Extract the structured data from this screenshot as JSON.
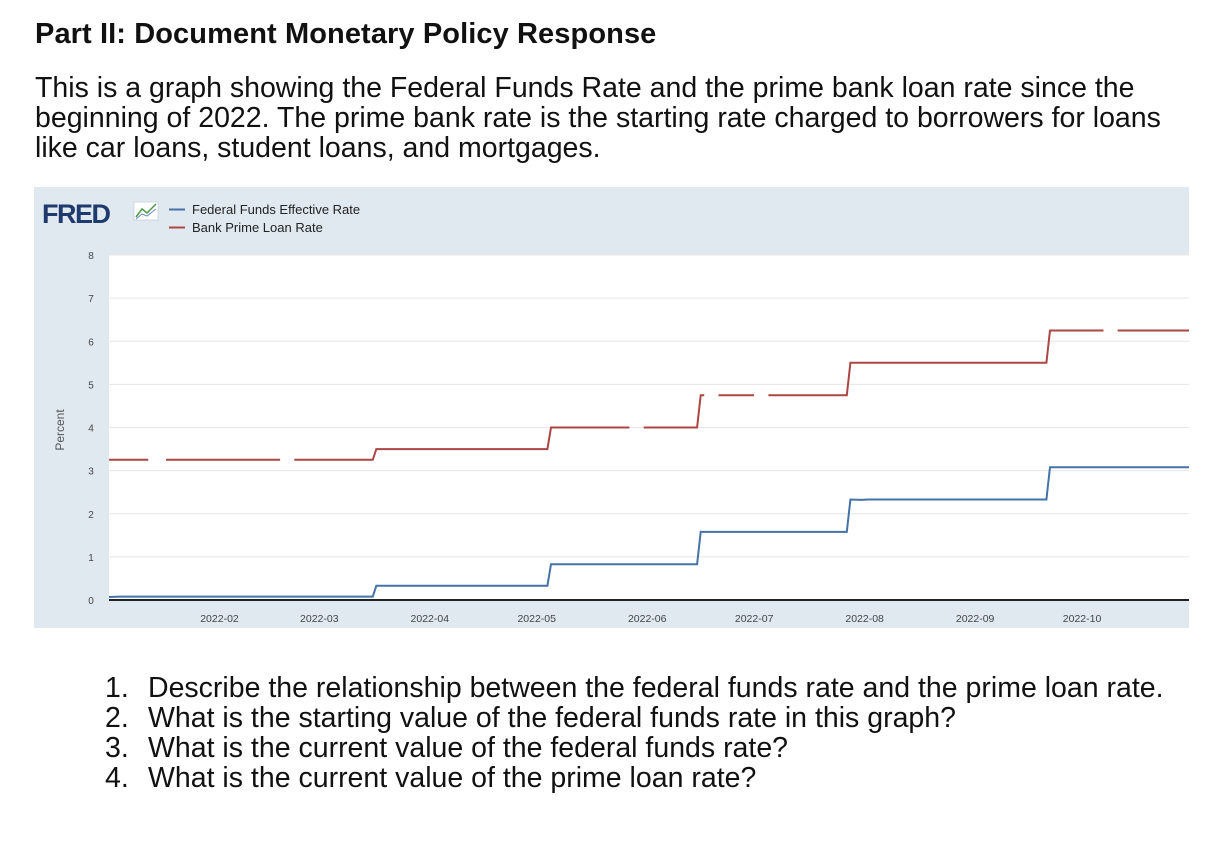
{
  "heading": "Part II:  Document Monetary Policy Response",
  "intro": "This is a graph showing the Federal Funds Rate and the prime bank loan rate since the beginning of 2022.  The prime bank rate is the starting rate charged to borrowers for loans like car loans, student loans, and mortgages.",
  "fred_logo_text": "FRED",
  "colors": {
    "federal_funds": "#4572a7",
    "prime_rate": "#aa4643",
    "plot_background": "#ffffff",
    "frame_background": "#e1e9f0"
  },
  "chart_data": {
    "type": "line",
    "ylabel": "Percent",
    "ylim": [
      0,
      8
    ],
    "yticks": [
      "0",
      "1",
      "2",
      "3",
      "4",
      "5",
      "6",
      "7",
      "8"
    ],
    "xlim": [
      "2022-01-01",
      "2022-10-31"
    ],
    "xticks": [
      "2022-02",
      "2022-03",
      "2022-04",
      "2022-05",
      "2022-06",
      "2022-07",
      "2022-08",
      "2022-09",
      "2022-10"
    ],
    "xtick_dates": [
      "2022-02-01",
      "2022-03-01",
      "2022-04-01",
      "2022-05-01",
      "2022-06-01",
      "2022-07-01",
      "2022-08-01",
      "2022-09-01",
      "2022-10-01"
    ],
    "grid": true,
    "legend_position": "top-left",
    "series": [
      {
        "name": "Federal Funds Effective Rate",
        "color": "#4572a7",
        "points": [
          [
            "2022-01-01",
            0.07
          ],
          [
            "2022-01-04",
            0.08
          ],
          [
            "2022-03-16",
            0.08
          ],
          [
            "2022-03-17",
            0.33
          ],
          [
            "2022-05-04",
            0.33
          ],
          [
            "2022-05-05",
            0.83
          ],
          [
            "2022-06-15",
            0.83
          ],
          [
            "2022-06-16",
            1.58
          ],
          [
            "2022-07-27",
            1.58
          ],
          [
            "2022-07-28",
            2.33
          ],
          [
            "2022-07-31",
            2.32
          ],
          [
            "2022-08-02",
            2.33
          ],
          [
            "2022-09-21",
            2.33
          ],
          [
            "2022-09-22",
            3.08
          ],
          [
            "2022-10-31",
            3.08
          ]
        ]
      },
      {
        "name": "Bank Prime Loan Rate",
        "color": "#aa4643",
        "segments": [
          [
            [
              "2022-01-01",
              3.25
            ],
            [
              "2022-01-12",
              3.25
            ]
          ],
          [
            [
              "2022-01-17",
              3.25
            ],
            [
              "2022-02-18",
              3.25
            ]
          ],
          [
            [
              "2022-02-22",
              3.25
            ],
            [
              "2022-03-16",
              3.25
            ],
            [
              "2022-03-17",
              3.5
            ],
            [
              "2022-05-04",
              3.5
            ],
            [
              "2022-05-05",
              4.0
            ],
            [
              "2022-05-27",
              4.0
            ]
          ],
          [
            [
              "2022-05-31",
              4.0
            ],
            [
              "2022-06-15",
              4.0
            ],
            [
              "2022-06-16",
              4.75
            ],
            [
              "2022-06-17",
              4.75
            ]
          ],
          [
            [
              "2022-06-21",
              4.75
            ],
            [
              "2022-07-01",
              4.75
            ]
          ],
          [
            [
              "2022-07-05",
              4.75
            ],
            [
              "2022-07-27",
              4.75
            ],
            [
              "2022-07-28",
              5.5
            ],
            [
              "2022-09-21",
              5.5
            ],
            [
              "2022-09-22",
              6.25
            ],
            [
              "2022-10-07",
              6.25
            ]
          ],
          [
            [
              "2022-10-11",
              6.25
            ],
            [
              "2022-10-31",
              6.25
            ]
          ]
        ]
      }
    ]
  },
  "questions": [
    {
      "number": "1.",
      "text": "Describe the relationship between the federal funds rate and the prime loan rate."
    },
    {
      "number": "2.",
      "text": "What is the starting value of the federal funds rate in this graph?"
    },
    {
      "number": "3.",
      "text": "What is the current value of the federal funds rate?"
    },
    {
      "number": "4.",
      "text": "What is the current value of the prime loan rate?"
    }
  ]
}
